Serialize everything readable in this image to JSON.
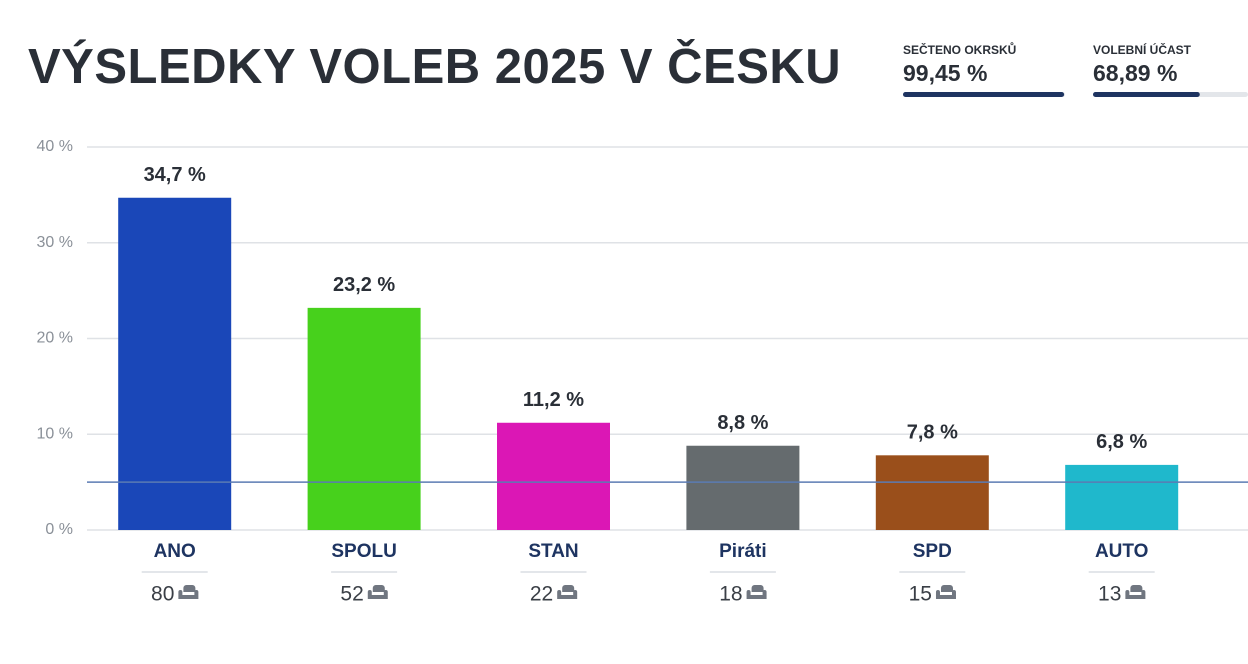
{
  "header": {
    "title": "VÝSLEDKY VOLEB 2025 V ČESKU"
  },
  "stats": {
    "xlim": [
      0,
      100
    ],
    "items": [
      {
        "label": "SEČTENO OKRSKŮ",
        "value": 99.45,
        "value_label": "99,45 %"
      },
      {
        "label": "VOLEBNÍ ÚČAST",
        "value": 68.89,
        "value_label": "68,89 %"
      }
    ]
  },
  "chart_data": {
    "type": "bar",
    "categories": [
      "ANO",
      "SPOLU",
      "STAN",
      "Piráti",
      "SPD",
      "AUTO"
    ],
    "values": [
      34.7,
      23.2,
      11.2,
      8.8,
      7.8,
      6.8
    ],
    "value_labels": [
      "34,7 %",
      "23,2 %",
      "11,2 %",
      "8,8 %",
      "7,8 %",
      "6,8 %"
    ],
    "colors": [
      "#1a47b8",
      "#47d11c",
      "#db17b5",
      "#656b6e",
      "#9a4f1b",
      "#1fb8cc"
    ],
    "seats": [
      80,
      52,
      22,
      18,
      15,
      13
    ],
    "threshold": 5,
    "ylim": [
      0,
      40
    ],
    "yticks": [
      {
        "value": 0,
        "label": "0 %"
      },
      {
        "value": 10,
        "label": "10 %"
      },
      {
        "value": 20,
        "label": "20 %"
      },
      {
        "value": 30,
        "label": "30 %"
      },
      {
        "value": 40,
        "label": "40 %"
      }
    ],
    "grid": true
  }
}
